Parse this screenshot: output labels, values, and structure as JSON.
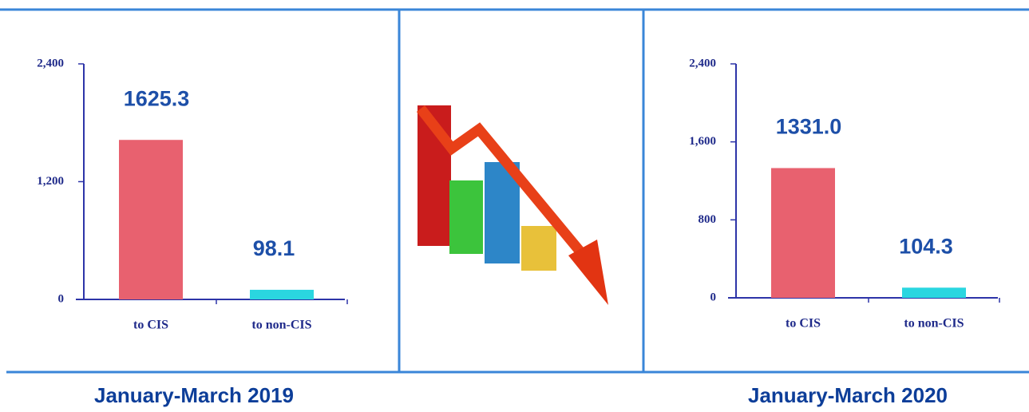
{
  "chart_data": [
    {
      "type": "bar",
      "title": "January-March 2019",
      "categories": [
        "to CIS",
        "to non-CIS"
      ],
      "values": [
        1625.3,
        98.1
      ],
      "colors": [
        "#e8616f",
        "#2ad6e0"
      ],
      "ylim": [
        0,
        2400
      ],
      "yticks": [
        0,
        {
          "value": 1200,
          "label": "1,200"
        },
        {
          "value": 2400,
          "label": "2,400"
        }
      ]
    },
    {
      "type": "bar",
      "title": "January-March 2020",
      "categories": [
        "to CIS",
        "to non-CIS"
      ],
      "values": [
        1331.0,
        104.3
      ],
      "value_labels": [
        "1331.0",
        "104.3"
      ],
      "colors": [
        "#e8616f",
        "#2ad6e0"
      ],
      "ylim": [
        0,
        2400
      ],
      "yticks": [
        0,
        800,
        {
          "value": 1600,
          "label": "1,600"
        },
        {
          "value": 2400,
          "label": "2,400"
        }
      ]
    }
  ]
}
